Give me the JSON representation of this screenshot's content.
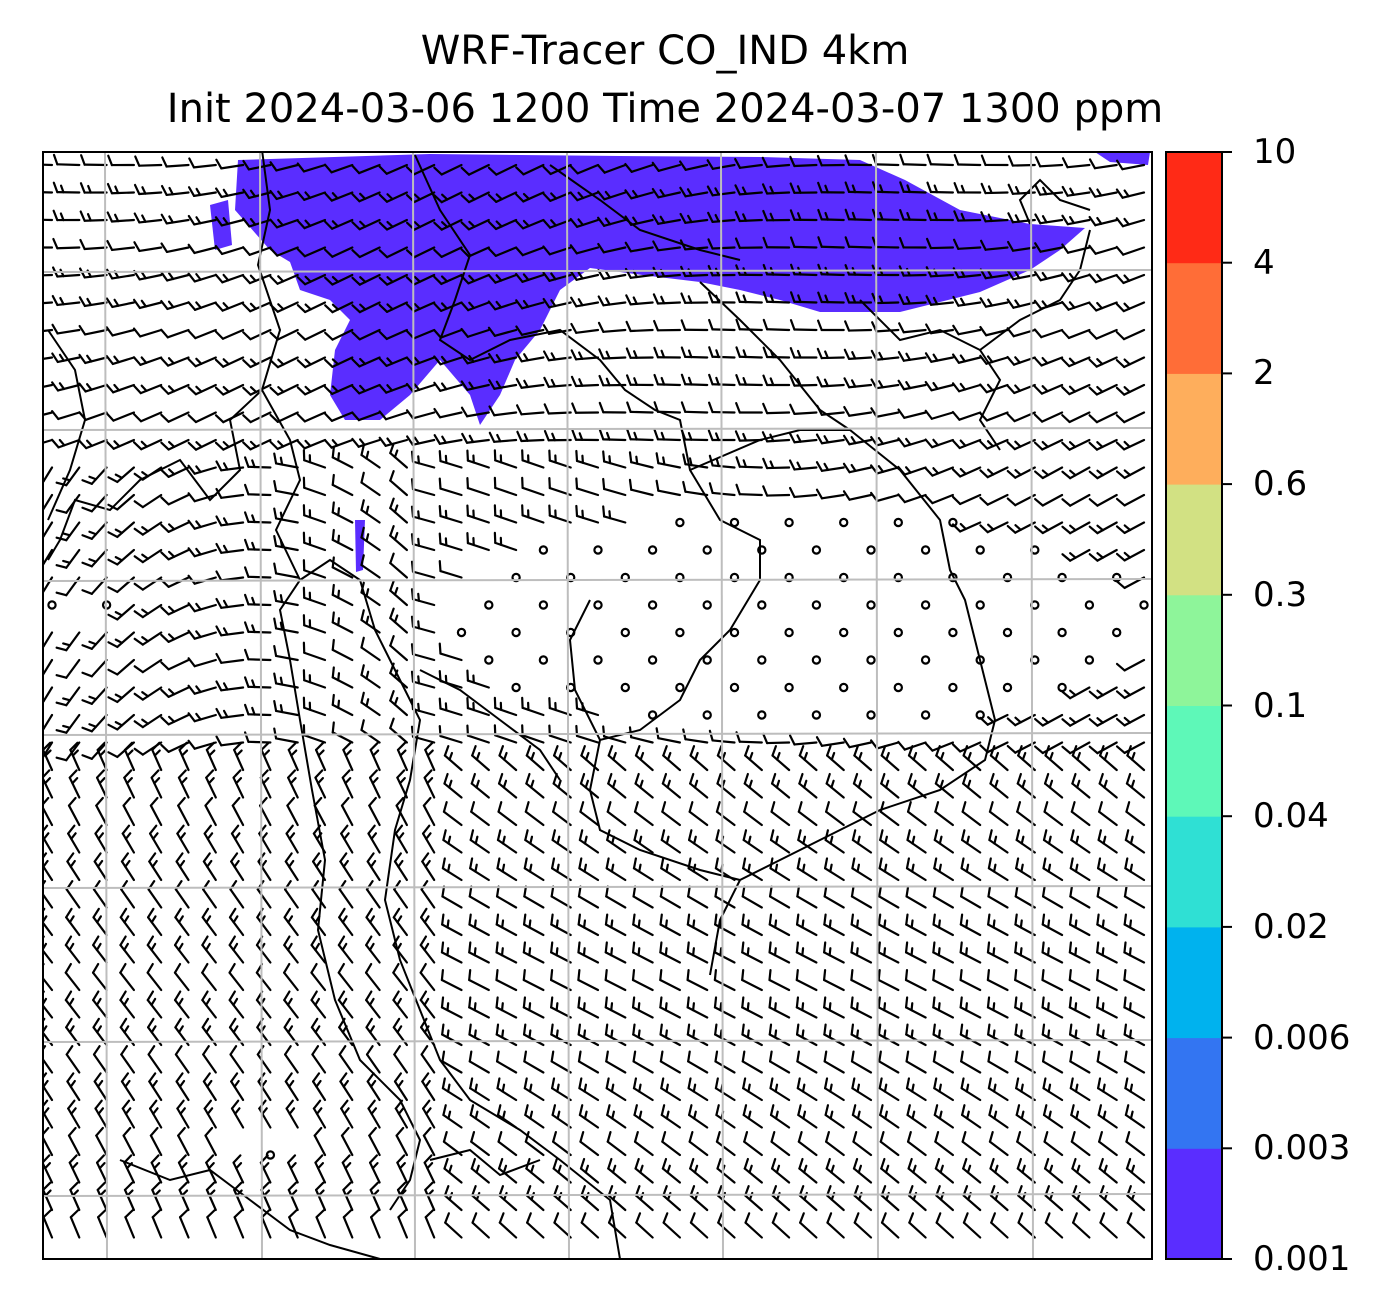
{
  "title": {
    "line1": "WRF-Tracer CO_IND 4km",
    "line2": "Init 2024-03-06 1200 Time 2024-03-07 1300 ppm"
  },
  "colorbar": {
    "levels": [
      "0.001",
      "0.003",
      "0.006",
      "0.02",
      "0.04",
      "0.1",
      "0.3",
      "0.6",
      "2",
      "4",
      "10"
    ],
    "colors": [
      "#5a2dff",
      "#3375f2",
      "#00b2ee",
      "#2fe0d4",
      "#5ef8b8",
      "#8ef59a",
      "#d2e183",
      "#feae5c",
      "#ff6d37",
      "#ff2a16"
    ]
  },
  "field": {
    "plume_color": "#5a2dff",
    "gridline_color": "#bdbdbd",
    "coastline_color": "#000000",
    "barb_color": "#000000"
  }
}
